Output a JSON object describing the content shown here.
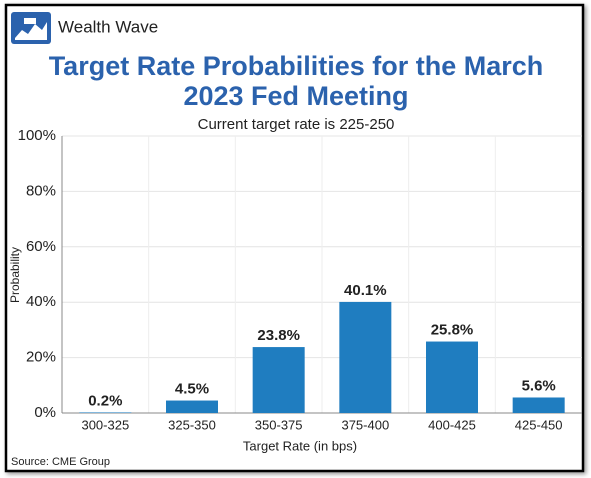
{
  "brand": "Wealth Wave",
  "chart_data": {
    "type": "bar",
    "title": [
      "Target Rate Probabilities for the March",
      "2023 Fed Meeting"
    ],
    "subtitle": "Current target rate is 225-250",
    "xlabel": "Target Rate (in bps)",
    "ylabel": "Probability",
    "source": "Source: CME Group",
    "categories": [
      "300-325",
      "325-350",
      "350-375",
      "375-400",
      "400-425",
      "425-450"
    ],
    "values": [
      0.2,
      4.5,
      23.8,
      40.1,
      25.8,
      5.6
    ],
    "value_labels": [
      "0.2%",
      "4.5%",
      "23.8%",
      "40.1%",
      "25.8%",
      "5.6%"
    ],
    "color": "#1f7dc0",
    "ylim": [
      0,
      100
    ],
    "yticks": [
      {
        "value": 0,
        "label": "0%"
      },
      {
        "value": 20,
        "label": "20%"
      },
      {
        "value": 40,
        "label": "40%"
      },
      {
        "value": 60,
        "label": "60%"
      },
      {
        "value": 80,
        "label": "80%"
      },
      {
        "value": 100,
        "label": "100%"
      }
    ],
    "grid": true
  }
}
